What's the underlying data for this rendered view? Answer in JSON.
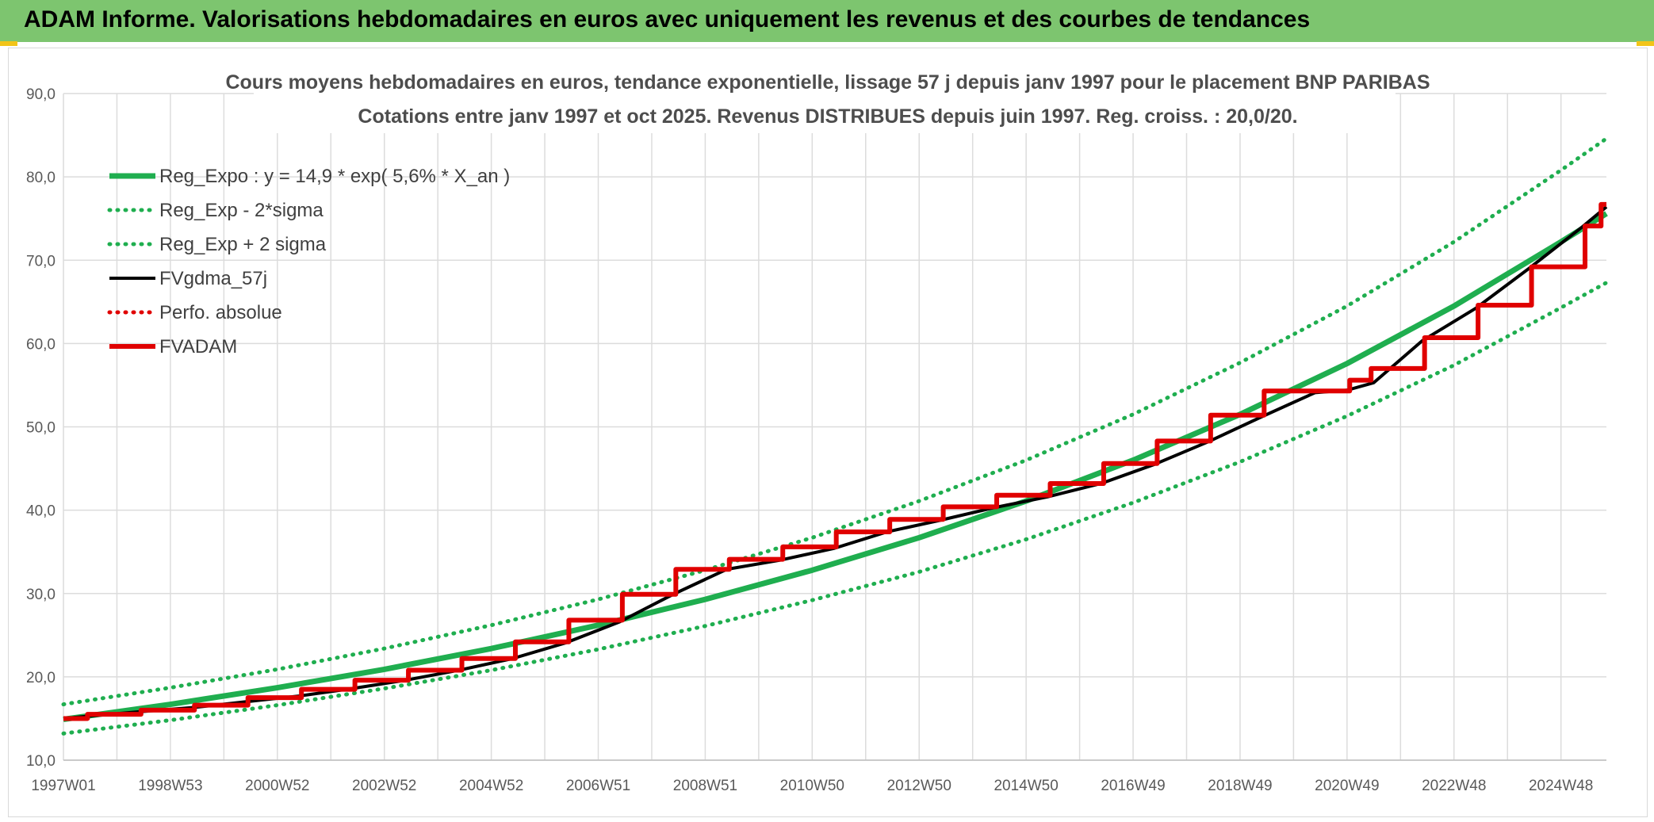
{
  "banner": {
    "title": "ADAM Informe. Valorisations hebdomadaires en euros avec uniquement les revenus et des courbes de tendances",
    "color": "#7dc56f"
  },
  "chart_data": {
    "type": "line",
    "title": "Cours moyens hebdomadaires en euros, tendance exponentielle, lissage 57 j depuis janv 1997 pour le placement BNP PARIBAS",
    "subtitle": "Cotations entre janv 1997 et oct 2025. Revenus DISTRIBUES depuis juin 1997. Reg. croiss. : 20,0/20.",
    "xlabel": "",
    "ylabel": "",
    "x_ticks": [
      "1997W01",
      "1998W53",
      "2000W52",
      "2002W52",
      "2004W52",
      "2006W51",
      "2008W51",
      "2010W50",
      "2012W50",
      "2014W50",
      "2016W49",
      "2018W49",
      "2020W49",
      "2022W48",
      "2024W48"
    ],
    "x_tick_years": [
      1997.0,
      1999.0,
      2001.0,
      2003.0,
      2005.0,
      2007.0,
      2009.0,
      2011.0,
      2013.0,
      2015.0,
      2017.0,
      2019.0,
      2021.0,
      2023.0,
      2025.0
    ],
    "xlim": [
      1997.0,
      2025.85
    ],
    "y_ticks": [
      "10,0",
      "20,0",
      "30,0",
      "40,0",
      "50,0",
      "60,0",
      "70,0",
      "80,0",
      "90,0"
    ],
    "ylim": [
      10,
      90
    ],
    "grid": true,
    "legend_position": "top-left",
    "series": [
      {
        "name": "Reg_Expo : y = 14,9 * exp( 5,6% *  X_an )",
        "color": "#1fae4f",
        "style": "solid-thick",
        "x": [
          1997,
          1999,
          2001,
          2003,
          2005,
          2007,
          2009,
          2011,
          2013,
          2015,
          2017,
          2019,
          2021,
          2023,
          2025,
          2025.85
        ],
        "y": [
          14.9,
          16.7,
          18.7,
          20.9,
          23.4,
          26.2,
          29.3,
          32.8,
          36.7,
          41.1,
          46.0,
          51.5,
          57.6,
          64.5,
          72.2,
          75.6
        ]
      },
      {
        "name": "Reg_Exp - 2*sigma",
        "color": "#1fae4f",
        "style": "dotted",
        "x": [
          1997,
          1999,
          2001,
          2003,
          2005,
          2007,
          2009,
          2011,
          2013,
          2015,
          2017,
          2019,
          2021,
          2023,
          2025,
          2025.85
        ],
        "y": [
          13.2,
          14.8,
          16.6,
          18.6,
          20.8,
          23.3,
          26.1,
          29.2,
          32.6,
          36.5,
          40.9,
          45.8,
          51.3,
          57.4,
          64.3,
          67.3
        ]
      },
      {
        "name": "Reg_Exp + 2 sigma",
        "color": "#1fae4f",
        "style": "dotted",
        "x": [
          1997,
          1999,
          2001,
          2003,
          2005,
          2007,
          2009,
          2011,
          2013,
          2015,
          2017,
          2019,
          2021,
          2023,
          2025,
          2025.85
        ],
        "y": [
          16.7,
          18.7,
          20.9,
          23.4,
          26.2,
          29.3,
          32.8,
          36.7,
          41.1,
          46.0,
          51.5,
          57.7,
          64.5,
          72.2,
          80.8,
          84.6
        ]
      },
      {
        "name": "FVgdma_57j",
        "color": "#000000",
        "style": "solid",
        "x": [
          1997,
          1997.5,
          1998.4,
          1999.4,
          2000.4,
          2001.4,
          2002.4,
          2003.4,
          2004.4,
          2005.4,
          2006.4,
          2007.4,
          2008.4,
          2009.4,
          2010.4,
          2011.4,
          2012.4,
          2013.4,
          2014.4,
          2015.4,
          2016.4,
          2017.4,
          2018.4,
          2019.4,
          2020.4,
          2021.0,
          2021.5,
          2022.4,
          2023.4,
          2024.4,
          2025.4,
          2025.85
        ],
        "y": [
          15.0,
          15.3,
          15.8,
          16.3,
          17.0,
          17.7,
          18.6,
          19.6,
          20.8,
          22.2,
          24.1,
          26.6,
          29.9,
          32.9,
          34.0,
          35.4,
          37.4,
          38.8,
          40.3,
          41.6,
          43.2,
          45.5,
          48.2,
          51.2,
          54.1,
          54.4,
          55.3,
          60.3,
          64.2,
          69.0,
          74.0,
          76.4
        ]
      },
      {
        "name": "Perfo. absolue",
        "color": "#e00000",
        "style": "dotted",
        "x": [],
        "y": []
      },
      {
        "name": "FVADAM",
        "color": "#e00000",
        "style": "step-thick",
        "x": [
          1997,
          1997.45,
          1998.45,
          1999.45,
          2000.45,
          2001.45,
          2002.45,
          2003.45,
          2004.45,
          2005.45,
          2006.45,
          2007.45,
          2008.45,
          2009.45,
          2010.45,
          2011.45,
          2012.45,
          2013.45,
          2014.45,
          2015.45,
          2016.45,
          2017.45,
          2018.45,
          2019.45,
          2021.05,
          2021.45,
          2022.45,
          2023.45,
          2024.45,
          2025.45,
          2025.75
        ],
        "y": [
          15.0,
          15.5,
          16.0,
          16.6,
          17.5,
          18.5,
          19.6,
          20.8,
          22.2,
          24.2,
          26.8,
          29.9,
          32.9,
          34.1,
          35.6,
          37.4,
          38.9,
          40.4,
          41.8,
          43.2,
          45.6,
          48.3,
          51.4,
          54.3,
          55.6,
          57.0,
          60.7,
          64.6,
          69.2,
          74.1,
          76.7
        ]
      }
    ]
  }
}
